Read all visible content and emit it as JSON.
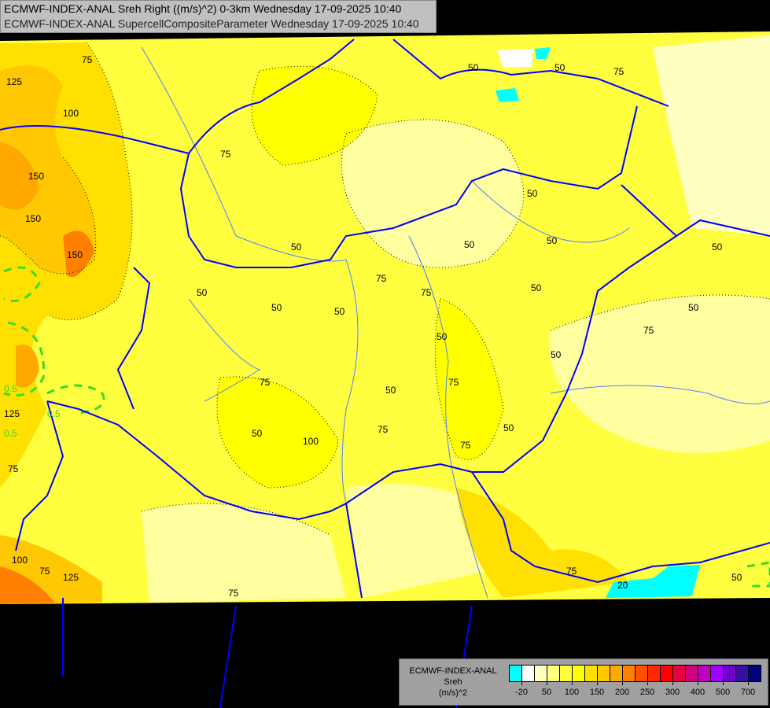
{
  "header": {
    "line1": "ECMWF-INDEX-ANAL Sreh Right ((m/s)^2) 0-3km Wednesday 17-09-2025 10:40",
    "line2": "ECMWF-INDEX-ANAL SupercellCompositeParameter Wednesday 17-09-2025 10:40"
  },
  "legend": {
    "model": "ECMWF-INDEX-ANAL",
    "variable": "Sreh",
    "unit": "(m/s)^2",
    "colors": [
      "#00ffff",
      "#ffffff",
      "#ffffc0",
      "#ffff80",
      "#ffff40",
      "#ffff00",
      "#ffe000",
      "#ffc800",
      "#ffa800",
      "#ff8000",
      "#ff5000",
      "#ff2800",
      "#ff0000",
      "#e80040",
      "#d00080",
      "#c000c0",
      "#a000ff",
      "#7000d0",
      "#3810a0",
      "#000080"
    ],
    "tick_labels": [
      "-20",
      "50",
      "100",
      "150",
      "200",
      "250",
      "300",
      "400",
      "500",
      "700"
    ]
  },
  "map": {
    "sreh_contour_labels": [
      "125",
      "100",
      "75",
      "150",
      "150",
      "150",
      "125",
      "75",
      "100",
      "125",
      "50",
      "75",
      "50",
      "50",
      "75",
      "75",
      "50",
      "50",
      "75",
      "50",
      "75",
      "50",
      "50",
      "75",
      "50",
      "50",
      "50",
      "50",
      "50",
      "75",
      "100",
      "75",
      "75",
      "50",
      "75",
      "50",
      "20",
      "50",
      "50",
      "75",
      "50",
      "75"
    ],
    "scp_contour_labels": [
      "0.5",
      "0.5",
      "0.5"
    ],
    "colors": {
      "border": "#0000ff",
      "river": "#5080ff",
      "background": "#000000",
      "scp_contour": "#33dd22"
    }
  }
}
